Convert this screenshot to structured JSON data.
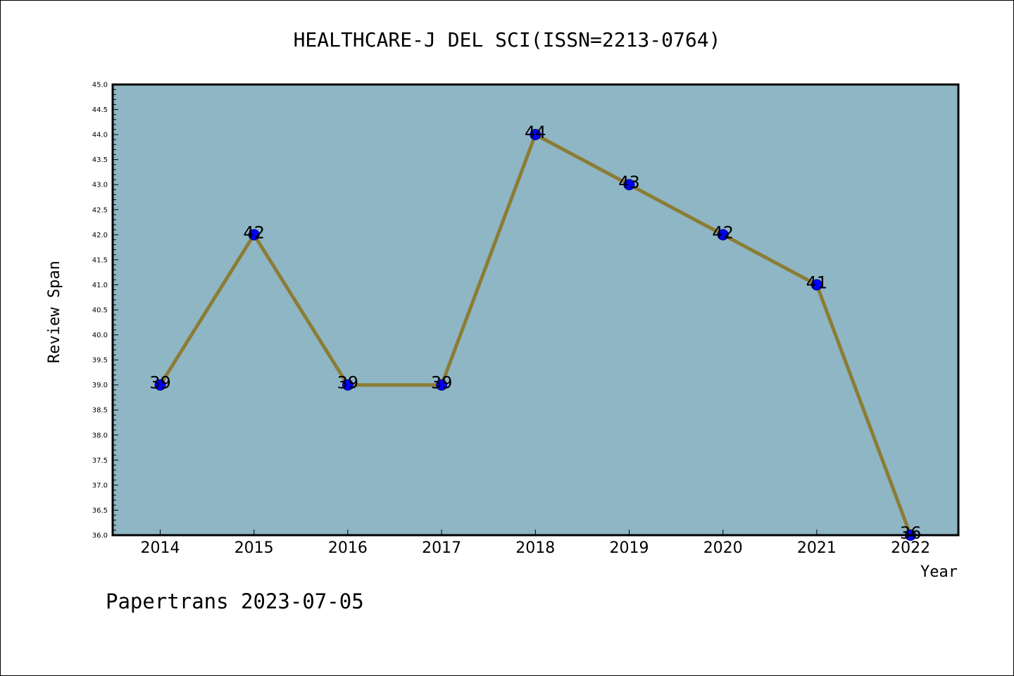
{
  "footer": {
    "text": "Papertrans 2023-07-05"
  },
  "colors": {
    "plot_background": "#8fb6c4",
    "line": "#8b7d36",
    "marker": "#0000ff",
    "marker_edge": "#000080",
    "frame": "#000000"
  },
  "chart_data": {
    "type": "line",
    "title": "HEALTHCARE-J DEL SCI(ISSN=2213-0764)",
    "xlabel": "Year",
    "ylabel": "Review Span",
    "x": [
      "2014",
      "2015",
      "2016",
      "2017",
      "2018",
      "2019",
      "2020",
      "2021",
      "2022"
    ],
    "series": [
      {
        "values": [
          39,
          42,
          39,
          39,
          44,
          43,
          42,
          41,
          36
        ]
      }
    ],
    "data_labels": [
      "39",
      "42",
      "39",
      "39",
      "44",
      "43",
      "42",
      "41",
      "36"
    ],
    "ylim": [
      36.0,
      45.0
    ],
    "yticks": [
      "36.0",
      "36.5",
      "37.0",
      "37.5",
      "38.0",
      "38.5",
      "39.0",
      "39.5",
      "40.0",
      "40.5",
      "41.0",
      "41.5",
      "42.0",
      "42.5",
      "43.0",
      "43.5",
      "44.0",
      "44.5",
      "45.0"
    ],
    "grid": false,
    "legend": "none"
  }
}
